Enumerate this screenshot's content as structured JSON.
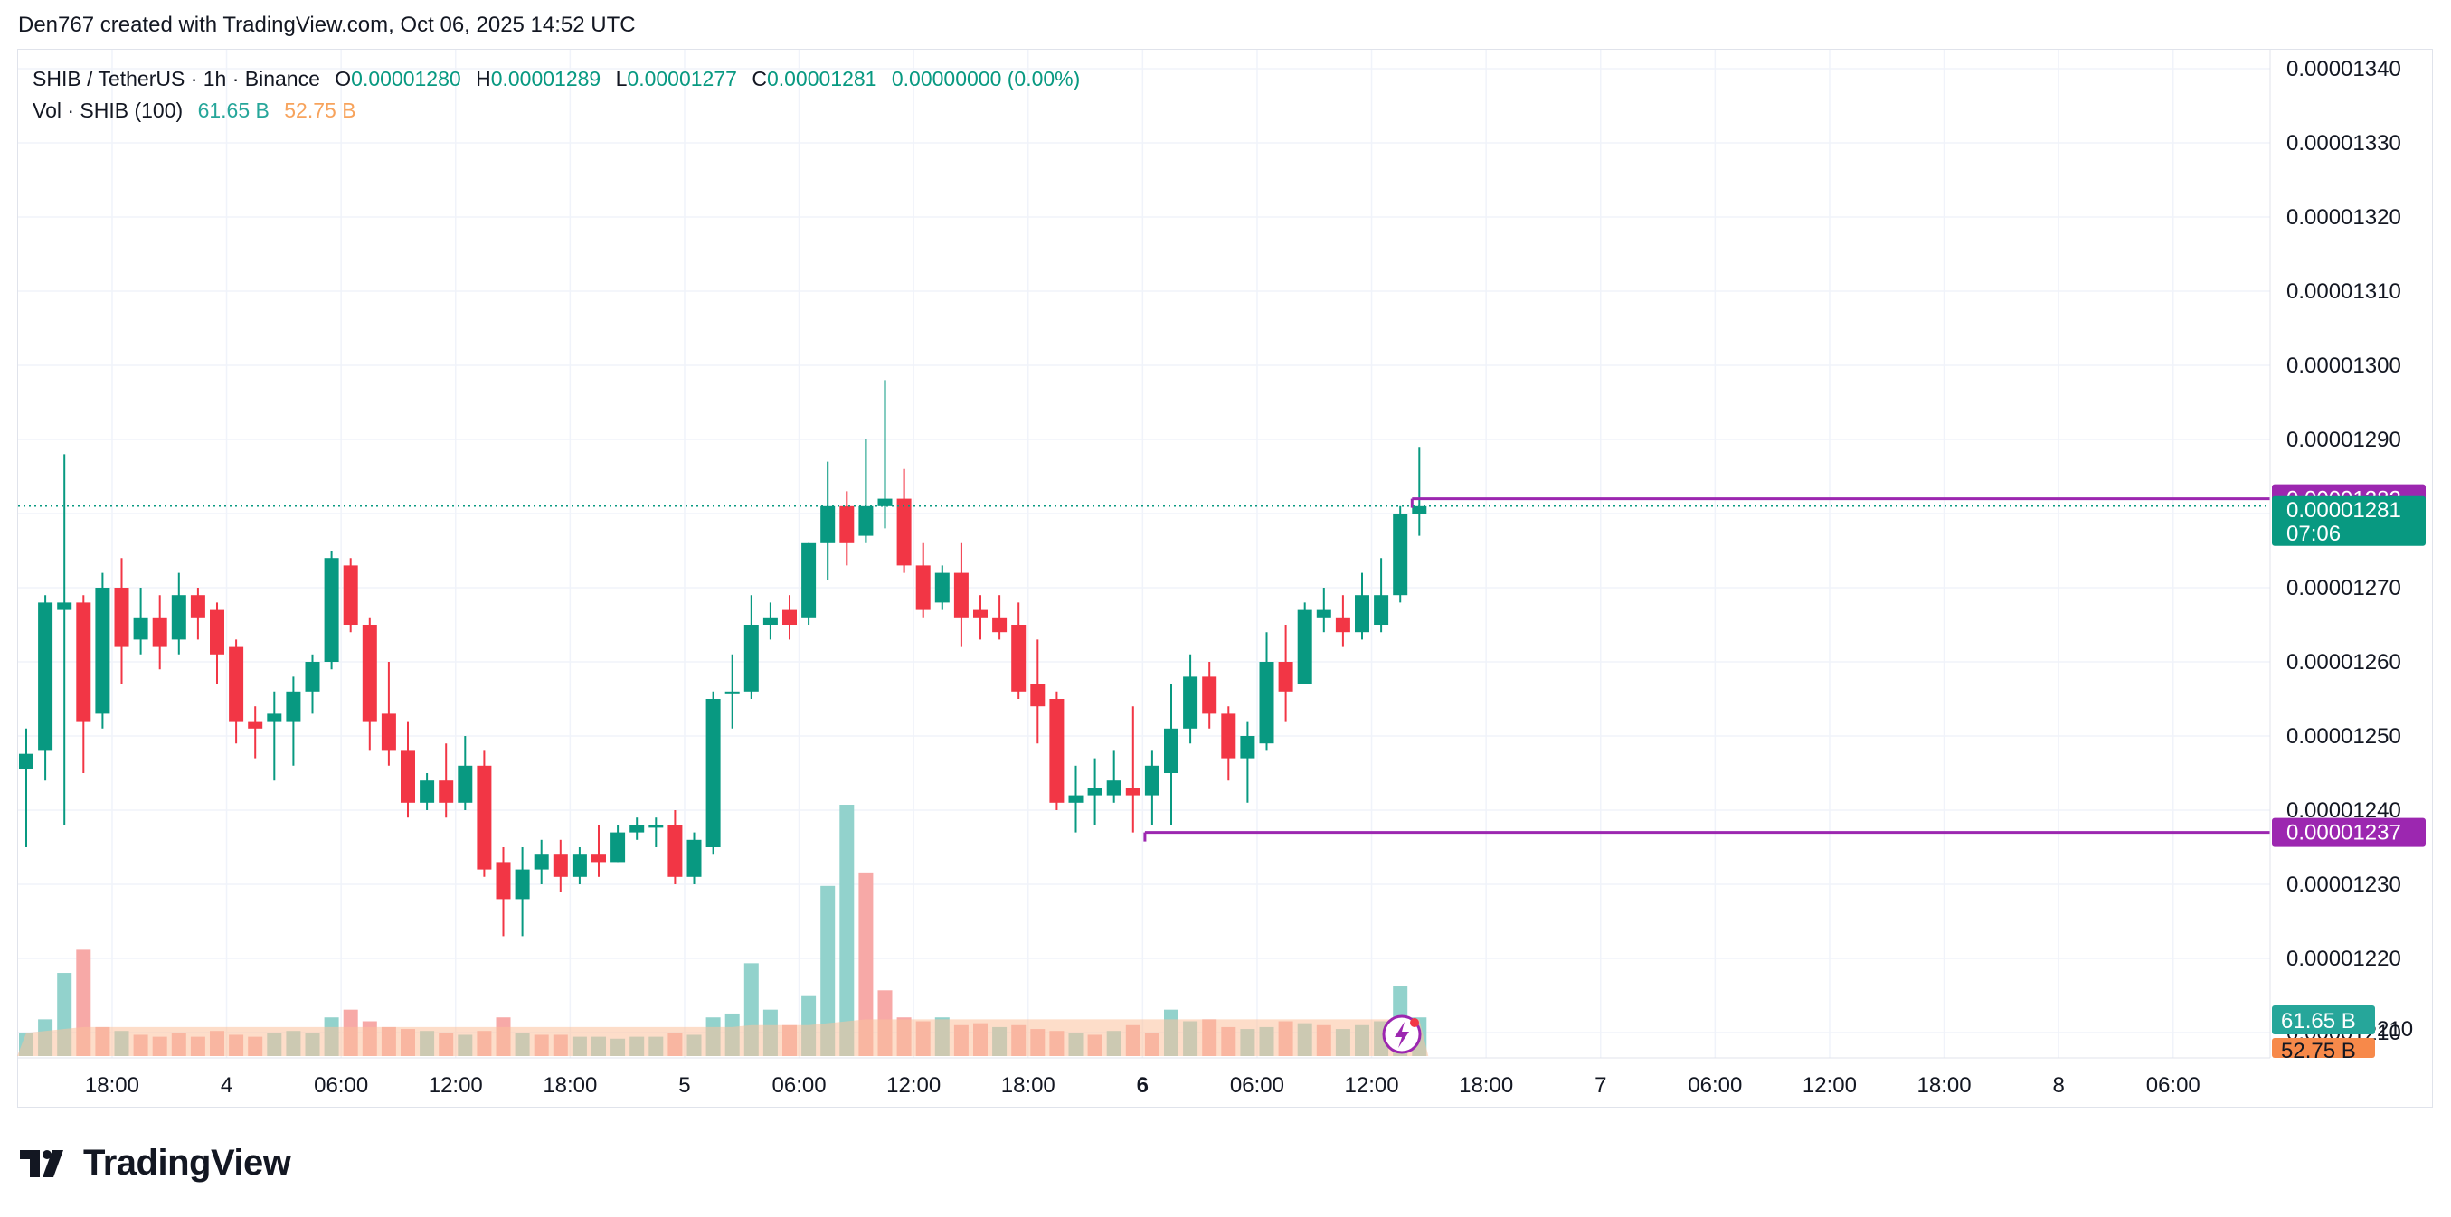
{
  "header": {
    "caption": "Den767 created with TradingView.com, Oct 06, 2025 14:52 UTC"
  },
  "legend": {
    "symbol": "SHIB / TetherUS · 1h · Binance",
    "o_label": "O",
    "o_value": "0.00001280",
    "h_label": "H",
    "h_value": "0.00001289",
    "l_label": "L",
    "l_value": "0.00001277",
    "c_label": "C",
    "c_value": "0.00001281",
    "change": "0.00000000 (0.00%)",
    "vol_label": "Vol · SHIB (100)",
    "vol_up": "61.65 B",
    "vol_down": "52.75 B"
  },
  "logo": {
    "text": "TradingView"
  },
  "colors": {
    "up": "#089981",
    "down": "#f23645",
    "line": "#9c27b0",
    "grid": "#f0f3fa",
    "text": "#131722",
    "vol_up": "#92d2cc",
    "vol_down": "#f7a9a7",
    "vol_ma": "#fcc19c"
  },
  "chart_data": {
    "type": "candlestick",
    "title": "SHIB / TetherUS · 1h · Binance",
    "ylim": [
      1.2055e-05,
      1.3435e-05
    ],
    "y_ticks": [
      "0.00001340",
      "0.00001330",
      "0.00001320",
      "0.00001310",
      "0.00001300",
      "0.00001290",
      "0.00001280",
      "0.00001270",
      "0.00001260",
      "0.00001250",
      "0.00001240",
      "0.00001230",
      "0.00001220",
      "0.00001210"
    ],
    "x_ticks": [
      {
        "label": "18:00",
        "i": 4.5,
        "bold": false
      },
      {
        "label": "4",
        "i": 10.5,
        "bold": false
      },
      {
        "label": "06:00",
        "i": 16.5,
        "bold": false
      },
      {
        "label": "12:00",
        "i": 22.5,
        "bold": false
      },
      {
        "label": "18:00",
        "i": 28.5,
        "bold": false
      },
      {
        "label": "5",
        "i": 34.5,
        "bold": false
      },
      {
        "label": "06:00",
        "i": 40.5,
        "bold": false
      },
      {
        "label": "12:00",
        "i": 46.5,
        "bold": false
      },
      {
        "label": "18:00",
        "i": 52.5,
        "bold": false
      },
      {
        "label": "6",
        "i": 58.5,
        "bold": true
      },
      {
        "label": "06:00",
        "i": 64.5,
        "bold": false
      },
      {
        "label": "12:00",
        "i": 70.5,
        "bold": false
      },
      {
        "label": "18:00",
        "i": 76.5,
        "bold": false
      },
      {
        "label": "7",
        "i": 82.5,
        "bold": false
      },
      {
        "label": "06:00",
        "i": 88.5,
        "bold": false
      },
      {
        "label": "12:00",
        "i": 94.5,
        "bold": false
      },
      {
        "label": "18:00",
        "i": 100.5,
        "bold": false
      },
      {
        "label": "8",
        "i": 106.5,
        "bold": false
      },
      {
        "label": "06:00",
        "i": 112.5,
        "bold": false
      }
    ],
    "candles": [
      [
        1.2456e-05,
        1.2476e-05,
        1.235e-05,
        1.251e-05
      ],
      [
        1.248e-05,
        1.268e-05,
        1.244e-05,
        1.269e-05
      ],
      [
        1.267e-05,
        1.268e-05,
        1.238e-05,
        1.288e-05
      ],
      [
        1.268e-05,
        1.252e-05,
        1.245e-05,
        1.269e-05
      ],
      [
        1.253e-05,
        1.27e-05,
        1.251e-05,
        1.272e-05
      ],
      [
        1.27e-05,
        1.262e-05,
        1.257e-05,
        1.274e-05
      ],
      [
        1.263e-05,
        1.266e-05,
        1.261e-05,
        1.27e-05
      ],
      [
        1.266e-05,
        1.262e-05,
        1.259e-05,
        1.269e-05
      ],
      [
        1.263e-05,
        1.269e-05,
        1.261e-05,
        1.272e-05
      ],
      [
        1.269e-05,
        1.266e-05,
        1.263e-05,
        1.27e-05
      ],
      [
        1.267e-05,
        1.261e-05,
        1.257e-05,
        1.268e-05
      ],
      [
        1.262e-05,
        1.252e-05,
        1.249e-05,
        1.263e-05
      ],
      [
        1.252e-05,
        1.251e-05,
        1.247e-05,
        1.254e-05
      ],
      [
        1.252e-05,
        1.253e-05,
        1.244e-05,
        1.256e-05
      ],
      [
        1.252e-05,
        1.256e-05,
        1.246e-05,
        1.258e-05
      ],
      [
        1.256e-05,
        1.26e-05,
        1.253e-05,
        1.261e-05
      ],
      [
        1.26e-05,
        1.274e-05,
        1.259e-05,
        1.275e-05
      ],
      [
        1.273e-05,
        1.265e-05,
        1.264e-05,
        1.274e-05
      ],
      [
        1.265e-05,
        1.252e-05,
        1.248e-05,
        1.266e-05
      ],
      [
        1.253e-05,
        1.248e-05,
        1.246e-05,
        1.26e-05
      ],
      [
        1.248e-05,
        1.241e-05,
        1.239e-05,
        1.252e-05
      ],
      [
        1.241e-05,
        1.244e-05,
        1.24e-05,
        1.245e-05
      ],
      [
        1.244e-05,
        1.241e-05,
        1.239e-05,
        1.249e-05
      ],
      [
        1.241e-05,
        1.246e-05,
        1.24e-05,
        1.25e-05
      ],
      [
        1.246e-05,
        1.232e-05,
        1.231e-05,
        1.248e-05
      ],
      [
        1.233e-05,
        1.228e-05,
        1.223e-05,
        1.235e-05
      ],
      [
        1.228e-05,
        1.232e-05,
        1.223e-05,
        1.235e-05
      ],
      [
        1.232e-05,
        1.234e-05,
        1.23e-05,
        1.236e-05
      ],
      [
        1.234e-05,
        1.231e-05,
        1.229e-05,
        1.236e-05
      ],
      [
        1.231e-05,
        1.234e-05,
        1.23e-05,
        1.235e-05
      ],
      [
        1.234e-05,
        1.233e-05,
        1.231e-05,
        1.238e-05
      ],
      [
        1.233e-05,
        1.237e-05,
        1.233e-05,
        1.238e-05
      ],
      [
        1.237e-05,
        1.238e-05,
        1.236e-05,
        1.239e-05
      ],
      [
        1.238e-05,
        1.238e-05,
        1.235e-05,
        1.239e-05
      ],
      [
        1.238e-05,
        1.231e-05,
        1.23e-05,
        1.24e-05
      ],
      [
        1.231e-05,
        1.236e-05,
        1.23e-05,
        1.237e-05
      ],
      [
        1.235e-05,
        1.255e-05,
        1.234e-05,
        1.256e-05
      ],
      [
        1.256e-05,
        1.256e-05,
        1.251e-05,
        1.261e-05
      ],
      [
        1.256e-05,
        1.265e-05,
        1.255e-05,
        1.269e-05
      ],
      [
        1.265e-05,
        1.266e-05,
        1.263e-05,
        1.268e-05
      ],
      [
        1.267e-05,
        1.265e-05,
        1.263e-05,
        1.269e-05
      ],
      [
        1.266e-05,
        1.276e-05,
        1.265e-05,
        1.276e-05
      ],
      [
        1.276e-05,
        1.281e-05,
        1.271e-05,
        1.287e-05
      ],
      [
        1.281e-05,
        1.276e-05,
        1.273e-05,
        1.283e-05
      ],
      [
        1.277e-05,
        1.281e-05,
        1.276e-05,
        1.29e-05
      ],
      [
        1.281e-05,
        1.282e-05,
        1.278e-05,
        1.298e-05
      ],
      [
        1.282e-05,
        1.273e-05,
        1.272e-05,
        1.286e-05
      ],
      [
        1.273e-05,
        1.267e-05,
        1.266e-05,
        1.276e-05
      ],
      [
        1.268e-05,
        1.272e-05,
        1.267e-05,
        1.273e-05
      ],
      [
        1.272e-05,
        1.266e-05,
        1.262e-05,
        1.276e-05
      ],
      [
        1.267e-05,
        1.266e-05,
        1.263e-05,
        1.269e-05
      ],
      [
        1.266e-05,
        1.264e-05,
        1.263e-05,
        1.269e-05
      ],
      [
        1.265e-05,
        1.256e-05,
        1.255e-05,
        1.268e-05
      ],
      [
        1.257e-05,
        1.254e-05,
        1.249e-05,
        1.263e-05
      ],
      [
        1.255e-05,
        1.241e-05,
        1.24e-05,
        1.256e-05
      ],
      [
        1.241e-05,
        1.242e-05,
        1.237e-05,
        1.246e-05
      ],
      [
        1.242e-05,
        1.243e-05,
        1.238e-05,
        1.247e-05
      ],
      [
        1.242e-05,
        1.244e-05,
        1.241e-05,
        1.248e-05
      ],
      [
        1.243e-05,
        1.242e-05,
        1.237e-05,
        1.254e-05
      ],
      [
        1.242e-05,
        1.246e-05,
        1.238e-05,
        1.248e-05
      ],
      [
        1.245e-05,
        1.251e-05,
        1.238e-05,
        1.257e-05
      ],
      [
        1.251e-05,
        1.258e-05,
        1.249e-05,
        1.261e-05
      ],
      [
        1.258e-05,
        1.253e-05,
        1.251e-05,
        1.26e-05
      ],
      [
        1.253e-05,
        1.247e-05,
        1.244e-05,
        1.254e-05
      ],
      [
        1.247e-05,
        1.25e-05,
        1.241e-05,
        1.252e-05
      ],
      [
        1.249e-05,
        1.26e-05,
        1.248e-05,
        1.264e-05
      ],
      [
        1.26e-05,
        1.256e-05,
        1.252e-05,
        1.265e-05
      ],
      [
        1.257e-05,
        1.267e-05,
        1.257e-05,
        1.268e-05
      ],
      [
        1.266e-05,
        1.267e-05,
        1.264e-05,
        1.27e-05
      ],
      [
        1.266e-05,
        1.264e-05,
        1.262e-05,
        1.269e-05
      ],
      [
        1.264e-05,
        1.269e-05,
        1.263e-05,
        1.272e-05
      ],
      [
        1.265e-05,
        1.269e-05,
        1.264e-05,
        1.274e-05
      ],
      [
        1.269e-05,
        1.28e-05,
        1.268e-05,
        1.281e-05
      ],
      [
        1.28e-05,
        1.281e-05,
        1.277e-05,
        1.289e-05
      ]
    ],
    "volumes": [
      [
        1.2,
        1
      ],
      [
        1.9,
        1
      ],
      [
        4.3,
        1
      ],
      [
        5.5,
        0
      ],
      [
        1.5,
        0
      ],
      [
        1.3,
        1
      ],
      [
        1.1,
        0
      ],
      [
        1.0,
        0
      ],
      [
        1.2,
        0
      ],
      [
        1.0,
        0
      ],
      [
        1.3,
        0
      ],
      [
        1.1,
        0
      ],
      [
        1.0,
        0
      ],
      [
        1.2,
        1
      ],
      [
        1.3,
        1
      ],
      [
        1.2,
        1
      ],
      [
        2.0,
        1
      ],
      [
        2.4,
        0
      ],
      [
        1.8,
        0
      ],
      [
        1.5,
        0
      ],
      [
        1.4,
        0
      ],
      [
        1.3,
        1
      ],
      [
        1.2,
        0
      ],
      [
        1.1,
        1
      ],
      [
        1.3,
        0
      ],
      [
        2.0,
        0
      ],
      [
        1.2,
        1
      ],
      [
        1.1,
        0
      ],
      [
        1.1,
        0
      ],
      [
        1.0,
        1
      ],
      [
        1.0,
        1
      ],
      [
        0.9,
        1
      ],
      [
        1.0,
        1
      ],
      [
        1.0,
        1
      ],
      [
        1.2,
        0
      ],
      [
        1.1,
        1
      ],
      [
        2.0,
        1
      ],
      [
        2.2,
        1
      ],
      [
        4.8,
        1
      ],
      [
        2.4,
        1
      ],
      [
        1.6,
        0
      ],
      [
        3.1,
        1
      ],
      [
        8.8,
        1
      ],
      [
        13.0,
        1
      ],
      [
        9.5,
        0
      ],
      [
        3.4,
        0
      ],
      [
        2.0,
        0
      ],
      [
        1.8,
        0
      ],
      [
        2.0,
        1
      ],
      [
        1.6,
        0
      ],
      [
        1.7,
        0
      ],
      [
        1.5,
        1
      ],
      [
        1.6,
        0
      ],
      [
        1.4,
        0
      ],
      [
        1.3,
        0
      ],
      [
        1.2,
        1
      ],
      [
        1.1,
        0
      ],
      [
        1.3,
        1
      ],
      [
        1.6,
        0
      ],
      [
        1.2,
        0
      ],
      [
        2.4,
        1
      ],
      [
        1.8,
        1
      ],
      [
        1.9,
        0
      ],
      [
        1.5,
        0
      ],
      [
        1.4,
        1
      ],
      [
        1.5,
        1
      ],
      [
        1.8,
        0
      ],
      [
        1.7,
        1
      ],
      [
        1.6,
        0
      ],
      [
        1.4,
        1
      ],
      [
        1.6,
        1
      ],
      [
        1.8,
        1
      ],
      [
        3.6,
        1
      ],
      [
        2.0,
        1
      ]
    ],
    "vol_ma": [
      1.2,
      1.3,
      1.4,
      1.5,
      1.5,
      1.5,
      1.5,
      1.5,
      1.5,
      1.5,
      1.5,
      1.5,
      1.5,
      1.5,
      1.5,
      1.5,
      1.5,
      1.5,
      1.5,
      1.5,
      1.5,
      1.5,
      1.5,
      1.5,
      1.5,
      1.5,
      1.5,
      1.5,
      1.5,
      1.5,
      1.5,
      1.5,
      1.5,
      1.5,
      1.5,
      1.5,
      1.5,
      1.5,
      1.6,
      1.6,
      1.6,
      1.6,
      1.7,
      1.8,
      1.9,
      1.9,
      1.9,
      1.9,
      1.9,
      1.9,
      1.9,
      1.9,
      1.9,
      1.9,
      1.9,
      1.9,
      1.9,
      1.9,
      1.9,
      1.9,
      1.9,
      1.9,
      1.9,
      1.9,
      1.9,
      1.9,
      1.9,
      1.9,
      1.9,
      1.9,
      1.9,
      1.9,
      1.9,
      1.9
    ],
    "vol_scale_max": 13.0,
    "hlines": [
      {
        "price": 1.282e-05,
        "start_index": 73,
        "label": "0.00001282"
      },
      {
        "price": 1.237e-05,
        "start_index": 59,
        "label": "0.00001237"
      }
    ],
    "last_price": {
      "value": "0.00001281",
      "countdown": "07:06"
    },
    "vol_badges": {
      "up": "61.65 B",
      "down": "52.75 B"
    }
  }
}
